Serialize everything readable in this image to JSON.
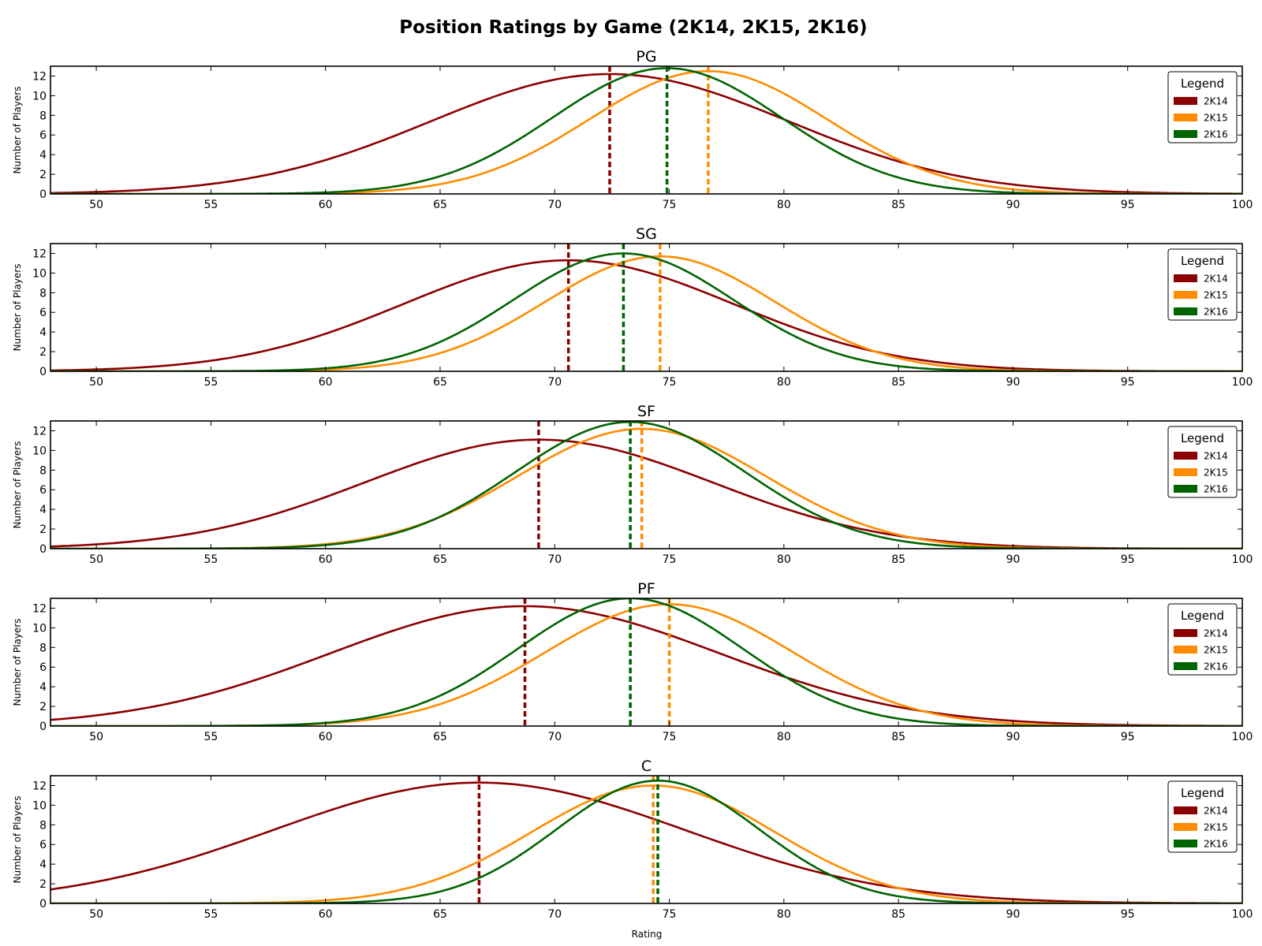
{
  "chart_data": {
    "type": "line",
    "title": "Position Ratings by Game (2K14, 2K15, 2K16)",
    "xlabel": "Rating",
    "ylabel": "Number of Players",
    "xlim": [
      48,
      100
    ],
    "ylim": [
      0,
      13
    ],
    "xticks": [
      50,
      55,
      60,
      65,
      70,
      75,
      80,
      85,
      90,
      95,
      100
    ],
    "yticks": [
      0,
      2,
      4,
      6,
      8,
      10,
      12
    ],
    "legend": {
      "title": "Legend",
      "placement": "top-right",
      "entries": [
        "2K14",
        "2K15",
        "2K16"
      ]
    },
    "colors": {
      "2K14": "#8b0000",
      "2K15": "#ff8c00",
      "2K16": "#006400"
    },
    "grid": false,
    "note_curves": "Each series is a normal density curve scaled to players; mean marked by dashed vertical line",
    "subplots": [
      {
        "title": "PG",
        "series": [
          {
            "name": "2K14",
            "mean": 72.4,
            "sd": 7.8,
            "peak": 12.2
          },
          {
            "name": "2K15",
            "mean": 76.7,
            "sd": 5.2,
            "peak": 12.5
          },
          {
            "name": "2K16",
            "mean": 74.9,
            "sd": 5.0,
            "peak": 12.8
          }
        ]
      },
      {
        "title": "SG",
        "series": [
          {
            "name": "2K14",
            "mean": 70.6,
            "sd": 7.2,
            "peak": 11.3
          },
          {
            "name": "2K15",
            "mean": 74.6,
            "sd": 5.0,
            "peak": 11.7
          },
          {
            "name": "2K16",
            "mean": 73.0,
            "sd": 4.8,
            "peak": 12.0
          }
        ]
      },
      {
        "title": "SF",
        "series": [
          {
            "name": "2K14",
            "mean": 69.3,
            "sd": 7.6,
            "peak": 11.1
          },
          {
            "name": "2K15",
            "mean": 73.8,
            "sd": 5.4,
            "peak": 12.2
          },
          {
            "name": "2K16",
            "mean": 73.3,
            "sd": 5.0,
            "peak": 12.9
          }
        ]
      },
      {
        "title": "PF",
        "series": [
          {
            "name": "2K14",
            "mean": 68.7,
            "sd": 8.5,
            "peak": 12.2
          },
          {
            "name": "2K15",
            "mean": 75.0,
            "sd": 5.4,
            "peak": 12.4
          },
          {
            "name": "2K16",
            "mean": 73.3,
            "sd": 4.9,
            "peak": 13.0
          }
        ]
      },
      {
        "title": "C",
        "series": [
          {
            "name": "2K14",
            "mean": 66.7,
            "sd": 9.0,
            "peak": 12.3
          },
          {
            "name": "2K15",
            "mean": 74.3,
            "sd": 5.3,
            "peak": 12.0
          },
          {
            "name": "2K16",
            "mean": 74.5,
            "sd": 4.4,
            "peak": 12.5
          }
        ]
      }
    ]
  }
}
